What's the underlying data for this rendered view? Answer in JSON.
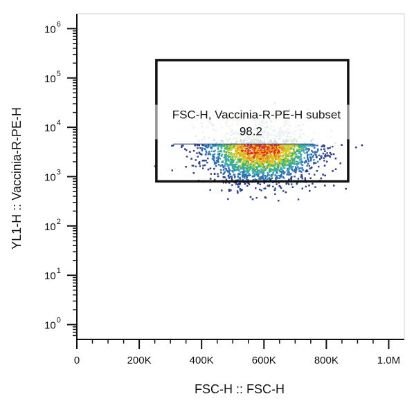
{
  "chart_data": {
    "type": "scatter",
    "xlabel": "FSC-H :: FSC-H",
    "ylabel": "YL1-H :: Vaccinia-R-PE-H",
    "xlim": [
      0,
      1050000
    ],
    "ylim_log10": [
      -0.3,
      6.3
    ],
    "y_scale": "log",
    "grid": false,
    "x_ticks": [
      {
        "value": 0,
        "label": "0"
      },
      {
        "value": 200000,
        "label": "200K"
      },
      {
        "value": 400000,
        "label": "400K"
      },
      {
        "value": 600000,
        "label": "600K"
      },
      {
        "value": 800000,
        "label": "800K"
      },
      {
        "value": 1000000,
        "label": "1.0M"
      }
    ],
    "y_ticks": [
      {
        "value": 1,
        "base": "10",
        "exp": "0"
      },
      {
        "value": 10,
        "base": "10",
        "exp": "1"
      },
      {
        "value": 100,
        "base": "10",
        "exp": "2"
      },
      {
        "value": 1000,
        "base": "10",
        "exp": "3"
      },
      {
        "value": 10000,
        "base": "10",
        "exp": "4"
      },
      {
        "value": 100000,
        "base": "10",
        "exp": "5"
      },
      {
        "value": 1000000,
        "base": "10",
        "exp": "6"
      }
    ],
    "gate": {
      "name": "FSC-H, Vaccinia-R-PE-H subset",
      "percent": "98.2",
      "x_range": [
        255000,
        870000
      ],
      "y_range": [
        800,
        230000
      ]
    },
    "population": {
      "x_center": 590000,
      "x_sd": 85000,
      "log10_y_center": 3.5,
      "log10_y_sd": 0.32,
      "event_count": 4200,
      "colors": [
        "#2b3f8f",
        "#2f6fb5",
        "#3fa6b8",
        "#3cb371",
        "#b9d23a",
        "#f0c419",
        "#f08a24",
        "#d7301f"
      ]
    }
  }
}
